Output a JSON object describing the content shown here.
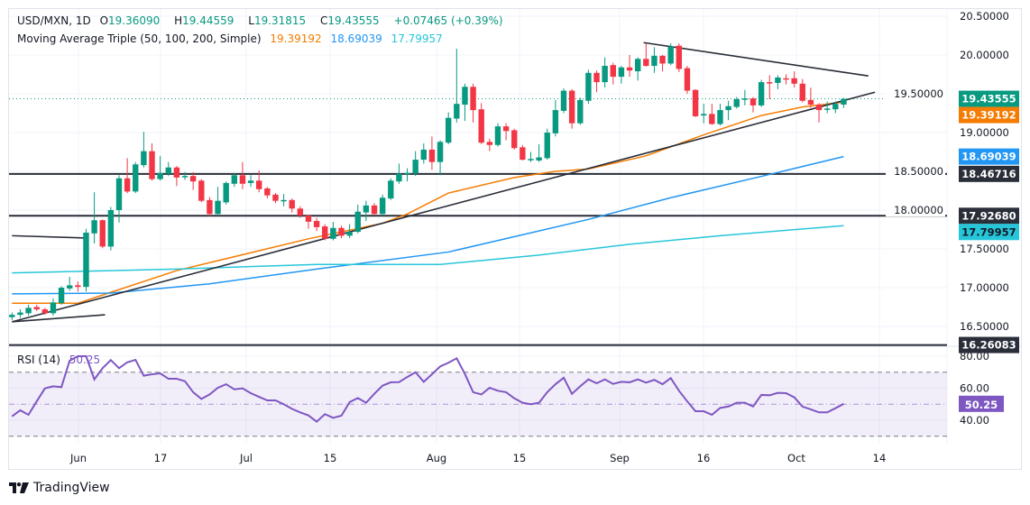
{
  "header": {
    "symbol": "USD/MXN, 1D",
    "o_label": "O",
    "o": "19.36090",
    "h_label": "H",
    "h": "19.44559",
    "l_label": "L",
    "l": "19.31815",
    "c_label": "C",
    "c": "19.43555",
    "change": "+0.07465 (+0.39%)"
  },
  "ma_legend": {
    "title": "Moving Average Triple (50, 100, 200, Simple)",
    "ma50": "19.39192",
    "ma100": "18.69039",
    "ma200": "17.79957"
  },
  "rsi_legend": {
    "title": "RSI (14)",
    "value": "50.25"
  },
  "colors": {
    "up": "#089981",
    "down": "#f23645",
    "ma50": "#f57c00",
    "ma100": "#2196f3",
    "ma200": "#26c6da",
    "rsi": "#7e57c2",
    "level_line": "#2a2e39"
  },
  "price_axis": [
    "20.50000",
    "20.00000",
    "19.50000",
    "19.00000",
    "18.50000",
    "18.00000",
    "17.50000",
    "17.00000",
    "16.50000"
  ],
  "rsi_axis": [
    "80.00",
    "60.00",
    "40.00"
  ],
  "badges": {
    "last": "19.43555",
    "ma50": "19.39192",
    "ma100": "18.69039",
    "level1": "18.46716",
    "level2": "17.92680",
    "ma200": "17.79957",
    "level3": "16.26083",
    "rsi": "50.25"
  },
  "x_ticks": [
    "Jun",
    "17",
    "Jul",
    "15",
    "Aug",
    "15",
    "Sep",
    "16",
    "Oct",
    "14"
  ],
  "brand": "TradingView",
  "chart_data": {
    "type": "candlestick",
    "title": "USD/MXN, 1D",
    "ylim": [
      16.2,
      20.6
    ],
    "grid": true,
    "candles_ohlc": [
      [
        16.62,
        16.68,
        16.58,
        16.65
      ],
      [
        16.65,
        16.72,
        16.61,
        16.68
      ],
      [
        16.67,
        16.78,
        16.64,
        16.74
      ],
      [
        16.75,
        16.78,
        16.7,
        16.72
      ],
      [
        16.72,
        16.74,
        16.65,
        16.67
      ],
      [
        16.67,
        16.86,
        16.64,
        16.81
      ],
      [
        16.8,
        17.02,
        16.78,
        17.0
      ],
      [
        16.99,
        17.14,
        16.96,
        17.03
      ],
      [
        17.03,
        17.08,
        16.95,
        17.01
      ],
      [
        17.01,
        17.76,
        16.95,
        17.71
      ],
      [
        17.7,
        18.23,
        17.57,
        17.87
      ],
      [
        17.87,
        17.88,
        17.51,
        17.53
      ],
      [
        17.53,
        18.04,
        17.48,
        18.0
      ],
      [
        18.0,
        18.45,
        17.84,
        18.41
      ],
      [
        18.41,
        18.67,
        18.22,
        18.24
      ],
      [
        18.24,
        18.62,
        18.22,
        18.59
      ],
      [
        18.58,
        19.01,
        18.55,
        18.76
      ],
      [
        18.76,
        18.86,
        18.38,
        18.4
      ],
      [
        18.4,
        18.7,
        18.38,
        18.48
      ],
      [
        18.47,
        18.62,
        18.44,
        18.55
      ],
      [
        18.55,
        18.57,
        18.31,
        18.42
      ],
      [
        18.43,
        18.49,
        18.39,
        18.44
      ],
      [
        18.44,
        18.49,
        18.26,
        18.37
      ],
      [
        18.38,
        18.4,
        18.1,
        18.12
      ],
      [
        18.13,
        18.17,
        17.92,
        17.95
      ],
      [
        17.95,
        18.3,
        17.93,
        18.12
      ],
      [
        18.1,
        18.37,
        18.07,
        18.35
      ],
      [
        18.34,
        18.48,
        18.3,
        18.45
      ],
      [
        18.45,
        18.62,
        18.27,
        18.34
      ],
      [
        18.35,
        18.45,
        18.3,
        18.38
      ],
      [
        18.38,
        18.51,
        18.23,
        18.27
      ],
      [
        18.28,
        18.3,
        18.15,
        18.19
      ],
      [
        18.2,
        18.22,
        18.09,
        18.12
      ],
      [
        18.12,
        18.21,
        18.05,
        18.13
      ],
      [
        18.13,
        18.15,
        17.97,
        18.02
      ],
      [
        18.02,
        18.05,
        17.9,
        17.93
      ],
      [
        17.93,
        17.94,
        17.76,
        17.85
      ],
      [
        17.86,
        17.9,
        17.73,
        17.78
      ],
      [
        17.79,
        17.82,
        17.61,
        17.63
      ],
      [
        17.63,
        17.85,
        17.61,
        17.77
      ],
      [
        17.77,
        17.8,
        17.64,
        17.67
      ],
      [
        17.67,
        17.82,
        17.64,
        17.72
      ],
      [
        17.72,
        18.07,
        17.7,
        17.98
      ],
      [
        17.97,
        18.12,
        17.86,
        18.06
      ],
      [
        18.06,
        18.09,
        17.93,
        17.95
      ],
      [
        17.95,
        18.2,
        17.93,
        18.16
      ],
      [
        18.15,
        18.41,
        18.13,
        18.38
      ],
      [
        18.37,
        18.6,
        18.34,
        18.47
      ],
      [
        18.47,
        18.54,
        18.37,
        18.48
      ],
      [
        18.47,
        18.76,
        18.44,
        18.65
      ],
      [
        18.65,
        18.86,
        18.6,
        18.78
      ],
      [
        18.78,
        18.95,
        18.52,
        18.62
      ],
      [
        18.62,
        18.9,
        18.45,
        18.88
      ],
      [
        18.87,
        19.26,
        18.85,
        19.19
      ],
      [
        19.18,
        20.08,
        19.13,
        19.37
      ],
      [
        19.36,
        19.63,
        19.15,
        19.59
      ],
      [
        19.59,
        19.63,
        19.13,
        19.29
      ],
      [
        19.3,
        19.38,
        18.85,
        18.87
      ],
      [
        18.88,
        18.92,
        18.76,
        18.84
      ],
      [
        18.84,
        19.12,
        18.82,
        19.08
      ],
      [
        19.08,
        19.12,
        18.9,
        19.02
      ],
      [
        19.03,
        19.05,
        18.78,
        18.8
      ],
      [
        18.81,
        18.84,
        18.64,
        18.65
      ],
      [
        18.65,
        18.75,
        18.62,
        18.66
      ],
      [
        18.64,
        18.85,
        18.62,
        18.68
      ],
      [
        18.67,
        19.05,
        18.65,
        19.0
      ],
      [
        18.99,
        19.42,
        18.95,
        19.29
      ],
      [
        19.28,
        19.57,
        19.25,
        19.54
      ],
      [
        19.54,
        19.56,
        19.05,
        19.12
      ],
      [
        19.12,
        19.45,
        19.1,
        19.42
      ],
      [
        19.41,
        19.81,
        19.37,
        19.77
      ],
      [
        19.77,
        19.8,
        19.52,
        19.65
      ],
      [
        19.65,
        19.97,
        19.58,
        19.86
      ],
      [
        19.87,
        19.9,
        19.62,
        19.72
      ],
      [
        19.72,
        19.86,
        19.63,
        19.84
      ],
      [
        19.84,
        20.0,
        19.72,
        19.8
      ],
      [
        19.79,
        19.97,
        19.67,
        19.95
      ],
      [
        19.95,
        20.15,
        19.85,
        19.86
      ],
      [
        19.86,
        20.1,
        19.77,
        19.99
      ],
      [
        19.99,
        20.0,
        19.79,
        19.89
      ],
      [
        19.89,
        20.15,
        19.87,
        20.11
      ],
      [
        20.12,
        20.15,
        19.78,
        19.82
      ],
      [
        19.83,
        19.86,
        19.5,
        19.54
      ],
      [
        19.55,
        19.56,
        19.2,
        19.21
      ],
      [
        19.22,
        19.37,
        19.12,
        19.24
      ],
      [
        19.24,
        19.37,
        19.1,
        19.11
      ],
      [
        19.11,
        19.37,
        19.09,
        19.29
      ],
      [
        19.29,
        19.41,
        19.16,
        19.34
      ],
      [
        19.33,
        19.46,
        19.31,
        19.43
      ],
      [
        19.44,
        19.55,
        19.35,
        19.44
      ],
      [
        19.44,
        19.46,
        19.26,
        19.35
      ],
      [
        19.35,
        19.68,
        19.33,
        19.65
      ],
      [
        19.65,
        19.74,
        19.43,
        19.64
      ],
      [
        19.64,
        19.74,
        19.56,
        19.71
      ],
      [
        19.7,
        19.75,
        19.62,
        19.69
      ],
      [
        19.7,
        19.79,
        19.58,
        19.63
      ],
      [
        19.63,
        19.69,
        19.39,
        19.41
      ],
      [
        19.42,
        19.58,
        19.32,
        19.36
      ],
      [
        19.36,
        19.38,
        19.13,
        19.29
      ],
      [
        19.3,
        19.4,
        19.25,
        19.31
      ],
      [
        19.3,
        19.4,
        19.25,
        19.37
      ],
      [
        19.3609,
        19.44559,
        19.31815,
        19.43555
      ]
    ],
    "moving_averages": [
      {
        "name": "50",
        "knots": [
          [
            0,
            16.8
          ],
          [
            8,
            16.8
          ],
          [
            20,
            17.22
          ],
          [
            36,
            17.63
          ],
          [
            45,
            17.83
          ],
          [
            48,
            17.95
          ],
          [
            53,
            18.22
          ],
          [
            61,
            18.42
          ],
          [
            66,
            18.5
          ],
          [
            70,
            18.53
          ],
          [
            77,
            18.7
          ],
          [
            84,
            18.97
          ],
          [
            91,
            19.22
          ],
          [
            96,
            19.33
          ],
          [
            101,
            19.39192
          ]
        ]
      },
      {
        "name": "100",
        "knots": [
          [
            0,
            16.92
          ],
          [
            12,
            16.93
          ],
          [
            24,
            17.05
          ],
          [
            37,
            17.24
          ],
          [
            53,
            17.46
          ],
          [
            70,
            17.88
          ],
          [
            80,
            18.16
          ],
          [
            92,
            18.46
          ],
          [
            101,
            18.69039
          ]
        ]
      },
      {
        "name": "200",
        "knots": [
          [
            0,
            17.19
          ],
          [
            20,
            17.24
          ],
          [
            37,
            17.3
          ],
          [
            52,
            17.3
          ],
          [
            64,
            17.42
          ],
          [
            75,
            17.56
          ],
          [
            86,
            17.67
          ],
          [
            101,
            17.79957
          ]
        ]
      }
    ],
    "horizontal_levels": [
      18.46716,
      17.9268,
      16.26083
    ],
    "trendlines": [
      [
        [
          0,
          16.56
        ],
        [
          104.8,
          19.52
        ]
      ],
      [
        [
          76.7,
          20.16
        ],
        [
          104,
          19.73
        ]
      ],
      [
        [
          0,
          17.67
        ],
        [
          9,
          17.64
        ]
      ],
      [
        [
          0,
          16.56
        ],
        [
          11.3,
          16.65
        ]
      ]
    ],
    "last_price": 19.43555,
    "rsi": {
      "period": 14,
      "ylim": [
        20,
        90
      ],
      "bands": [
        70,
        50,
        30
      ],
      "values": [
        42.4,
        46.2,
        43.4,
        51.8,
        59.9,
        61.2,
        60.7,
        77.2,
        80.0,
        80.0,
        65.5,
        72.5,
        77.6,
        72.5,
        76.2,
        77.7,
        67.8,
        68.7,
        69.3,
        65.9,
        65.9,
        64.4,
        57.5,
        53.3,
        56.1,
        60.3,
        62.5,
        59.3,
        59.9,
        56.9,
        54.6,
        52.4,
        52.4,
        50.0,
        47.1,
        44.9,
        43.0,
        39.1,
        43.8,
        41.5,
        42.8,
        51.3,
        53.9,
        50.9,
        56.5,
        61.6,
        63.7,
        63.8,
        67.0,
        70.0,
        64.0,
        68.7,
        73.6,
        75.9,
        78.7,
        68.9,
        57.5,
        56.1,
        60.3,
        58.4,
        57.5,
        53.7,
        50.9,
        50.0,
        50.9,
        57.5,
        62.5,
        66.5,
        56.5,
        61.2,
        65.5,
        63.1,
        65.5,
        62.7,
        64.0,
        63.7,
        65.5,
        63.5,
        65.2,
        62.5,
        66.3,
        58.4,
        51.8,
        45.6,
        45.6,
        43.4,
        47.7,
        48.6,
        50.9,
        50.9,
        48.6,
        55.8,
        55.6,
        57.1,
        56.9,
        54.3,
        48.5,
        46.8,
        44.9,
        44.9,
        47.5,
        50.25
      ]
    }
  }
}
